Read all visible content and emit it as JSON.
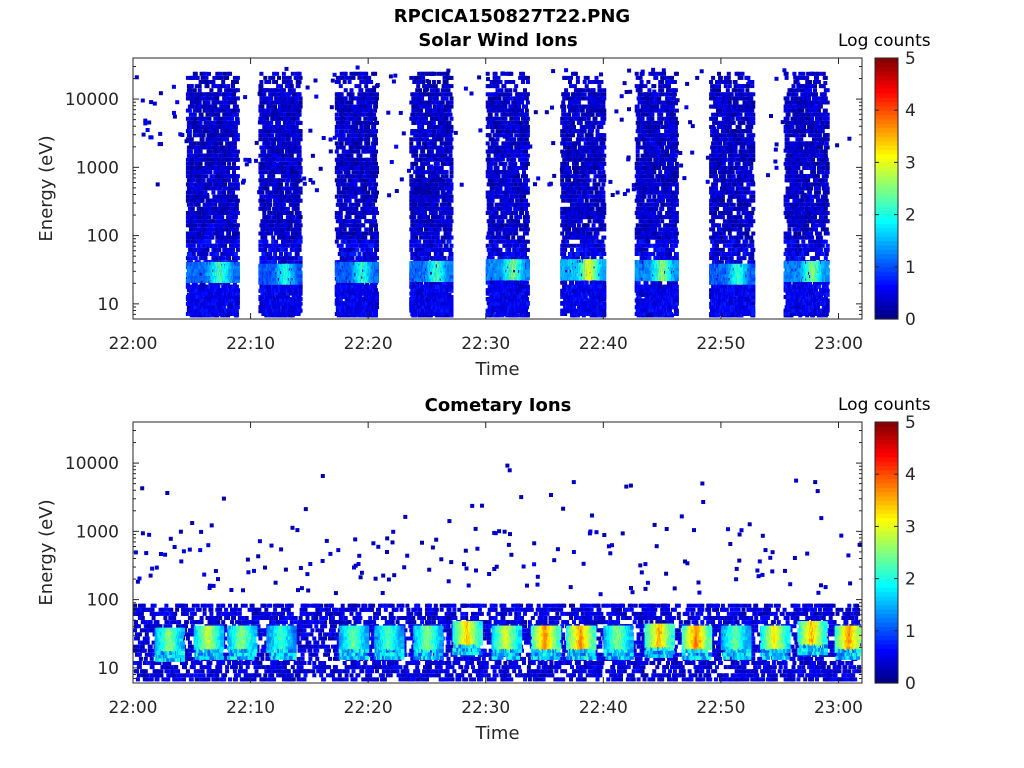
{
  "figure": {
    "title": "RPCICA150827T22.PNG"
  },
  "colors": {
    "colormap": "jet",
    "background": "#ffffff",
    "axis": "#262626"
  },
  "chart_data": [
    {
      "type": "heatmap",
      "title": "Solar Wind Ions",
      "xlabel": "Time",
      "ylabel": "Energy (eV)",
      "x_ticks": [
        "22:00",
        "22:10",
        "22:20",
        "22:30",
        "22:40",
        "22:50",
        "23:00"
      ],
      "xlim": [
        "22:00",
        "23:02"
      ],
      "y_scale": "log",
      "y_ticks": [
        10,
        100,
        1000,
        10000
      ],
      "y_tick_labels": [
        "10",
        "100",
        "1000",
        "10000"
      ],
      "ylim": [
        6,
        40000
      ],
      "colorbar": {
        "label": "Log counts",
        "ticks": [
          "0",
          "1",
          "2",
          "3",
          "4",
          "5"
        ],
        "range": [
          0,
          5
        ]
      },
      "scans": [
        {
          "start": "22:04:30",
          "end": "22:08:50",
          "peak_energy_eV": 32,
          "peak_log_counts": 2.3
        },
        {
          "start": "22:10:40",
          "end": "22:14:10",
          "peak_energy_eV": 30,
          "peak_log_counts": 2.1
        },
        {
          "start": "22:17:10",
          "end": "22:20:40",
          "peak_energy_eV": 32,
          "peak_log_counts": 2.2
        },
        {
          "start": "22:23:30",
          "end": "22:27:00",
          "peak_energy_eV": 33,
          "peak_log_counts": 2.3
        },
        {
          "start": "22:30:00",
          "end": "22:33:30",
          "peak_energy_eV": 35,
          "peak_log_counts": 2.6
        },
        {
          "start": "22:36:20",
          "end": "22:40:00",
          "peak_energy_eV": 35,
          "peak_log_counts": 3.1
        },
        {
          "start": "22:42:40",
          "end": "22:46:10",
          "peak_energy_eV": 34,
          "peak_log_counts": 2.7
        },
        {
          "start": "22:49:00",
          "end": "22:52:40",
          "peak_energy_eV": 30,
          "peak_log_counts": 2.2
        },
        {
          "start": "22:55:20",
          "end": "22:59:00",
          "peak_energy_eV": 33,
          "peak_log_counts": 2.6
        }
      ]
    },
    {
      "type": "heatmap",
      "title": "Cometary Ions",
      "xlabel": "Time",
      "ylabel": "Energy (eV)",
      "x_ticks": [
        "22:00",
        "22:10",
        "22:20",
        "22:30",
        "22:40",
        "22:50",
        "23:00"
      ],
      "xlim": [
        "22:00",
        "23:02"
      ],
      "y_scale": "log",
      "y_ticks": [
        10,
        100,
        1000,
        10000
      ],
      "y_tick_labels": [
        "10",
        "100",
        "1000",
        "10000"
      ],
      "ylim": [
        6,
        40000
      ],
      "colorbar": {
        "label": "Log counts",
        "ticks": [
          "0",
          "1",
          "2",
          "3",
          "4",
          "5"
        ],
        "range": [
          0,
          5
        ]
      },
      "bursts": [
        {
          "time": "22:03:00",
          "energy_eV": 28,
          "log_counts": 2.6
        },
        {
          "time": "22:06:20",
          "energy_eV": 30,
          "log_counts": 2.9
        },
        {
          "time": "22:09:10",
          "energy_eV": 30,
          "log_counts": 2.6
        },
        {
          "time": "22:12:30",
          "energy_eV": 30,
          "log_counts": 2.2
        },
        {
          "time": "22:18:40",
          "energy_eV": 30,
          "log_counts": 2.4
        },
        {
          "time": "22:21:40",
          "energy_eV": 30,
          "log_counts": 2.3
        },
        {
          "time": "22:25:00",
          "energy_eV": 30,
          "log_counts": 2.6
        },
        {
          "time": "22:28:20",
          "energy_eV": 35,
          "log_counts": 3.4
        },
        {
          "time": "22:31:40",
          "energy_eV": 30,
          "log_counts": 3.0
        },
        {
          "time": "22:35:00",
          "energy_eV": 30,
          "log_counts": 3.7
        },
        {
          "time": "22:38:00",
          "energy_eV": 30,
          "log_counts": 3.7
        },
        {
          "time": "22:41:10",
          "energy_eV": 30,
          "log_counts": 2.6
        },
        {
          "time": "22:44:40",
          "energy_eV": 32,
          "log_counts": 3.5
        },
        {
          "time": "22:47:50",
          "energy_eV": 30,
          "log_counts": 3.8
        },
        {
          "time": "22:51:10",
          "energy_eV": 30,
          "log_counts": 2.4
        },
        {
          "time": "22:54:30",
          "energy_eV": 30,
          "log_counts": 3.2
        },
        {
          "time": "22:57:40",
          "energy_eV": 35,
          "log_counts": 3.5
        },
        {
          "time": "23:00:50",
          "energy_eV": 30,
          "log_counts": 3.7
        }
      ]
    }
  ]
}
